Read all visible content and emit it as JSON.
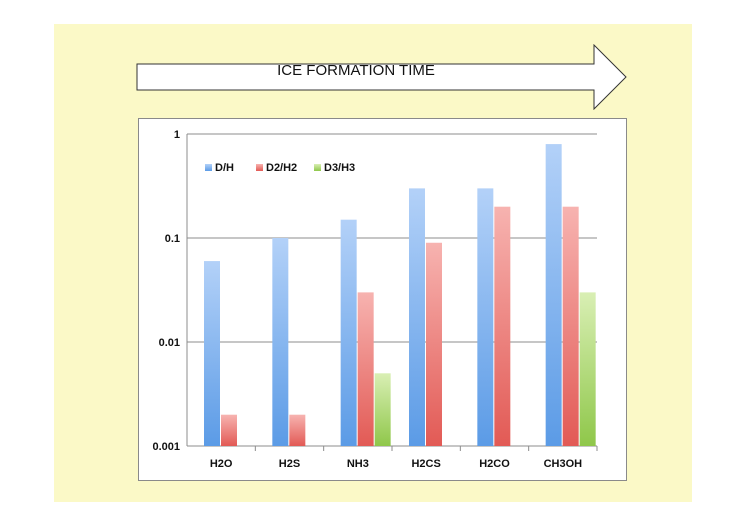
{
  "banner": {
    "label": "ICE FORMATION TIME"
  },
  "colors": {
    "background": "#fbf9c7",
    "dh": "#5b9be6",
    "d2h2": "#e25a55",
    "d3h3": "#8fc74a"
  },
  "chart_data": {
    "type": "bar",
    "title": "",
    "xlabel": "",
    "ylabel": "",
    "yscale": "log",
    "ylim": [
      0.001,
      1
    ],
    "yticks": [
      "0.001",
      "0.01",
      "0.1",
      "1"
    ],
    "grid": true,
    "legend_position": "top-left",
    "categories": [
      "H2O",
      "H2S",
      "NH3",
      "H2CS",
      "H2CO",
      "CH3OH"
    ],
    "series": [
      {
        "name": "D/H",
        "values": [
          0.06,
          0.1,
          0.15,
          0.3,
          0.3,
          0.8
        ]
      },
      {
        "name": "D2/H2",
        "values": [
          0.002,
          0.002,
          0.03,
          0.09,
          0.2,
          0.2
        ]
      },
      {
        "name": "D3/H3",
        "values": [
          null,
          null,
          0.005,
          null,
          null,
          0.03
        ]
      }
    ]
  }
}
